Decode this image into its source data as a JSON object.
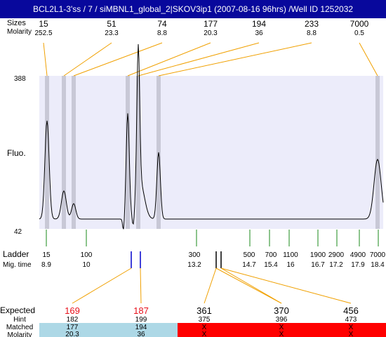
{
  "title": "BCL2L1-3'ss / 7 / siMBNL1_global_2|SKOV3ip1 (2007-08-16 96hrs) /Well ID 1252032",
  "labels": {
    "size": "Sizes",
    "molarity_top": "Molarity",
    "fluo": "Fluo.",
    "ladder": "Ladder",
    "mig_time": "Mig. time",
    "expected": "Expected",
    "hint": "Hint",
    "matched": "Matched",
    "molarity_bottom": "Molarity"
  },
  "colors": {
    "title_bar": "#08089c",
    "plot_bg": "#ececfa",
    "band": "#c8c8d6",
    "connector": "#f0a000",
    "ladder_tick": "#1a8a1a",
    "matched_marker": "#0000cc",
    "expected_match": "#e8101a",
    "matched_ok_bg": "#add8e6",
    "matched_miss_bg": "#ff0000"
  },
  "chart_data": {
    "type": "line",
    "y_axis": {
      "min": 42,
      "max": 388,
      "tick_labels": [
        "388",
        "42"
      ]
    },
    "peaks": [
      {
        "size": "15",
        "molarity": "252.5"
      },
      {
        "size": "51",
        "molarity": "23.3"
      },
      {
        "size": "74",
        "molarity": "8.8"
      },
      {
        "size": "177",
        "molarity": "20.3"
      },
      {
        "size": "194",
        "molarity": "36"
      },
      {
        "size": "233",
        "molarity": "8.8"
      },
      {
        "size": "7000",
        "molarity": "0.5"
      }
    ],
    "ladder": [
      {
        "size": "15",
        "time": "8.9"
      },
      {
        "size": "100",
        "time": "10"
      },
      {
        "size": "300",
        "time": "13.2"
      },
      {
        "size": "500",
        "time": "14.7"
      },
      {
        "size": "700",
        "time": "15.4"
      },
      {
        "size": "1100",
        "time": "16"
      },
      {
        "size": "1900",
        "time": "16.7"
      },
      {
        "size": "2900",
        "time": "17.2"
      },
      {
        "size": "4900",
        "time": "17.9"
      },
      {
        "size": "7000",
        "time": "18.4"
      }
    ],
    "expected": [
      {
        "size": "169",
        "hint": "182",
        "matched": "177",
        "molarity": "20.3",
        "found": true
      },
      {
        "size": "187",
        "hint": "199",
        "matched": "194",
        "molarity": "36",
        "found": true
      },
      {
        "size": "361",
        "hint": "375",
        "matched": "X",
        "molarity": "X",
        "found": false
      },
      {
        "size": "370",
        "hint": "396",
        "matched": "X",
        "molarity": "X",
        "found": false
      },
      {
        "size": "456",
        "hint": "473",
        "matched": "X",
        "molarity": "X",
        "found": false
      }
    ]
  }
}
